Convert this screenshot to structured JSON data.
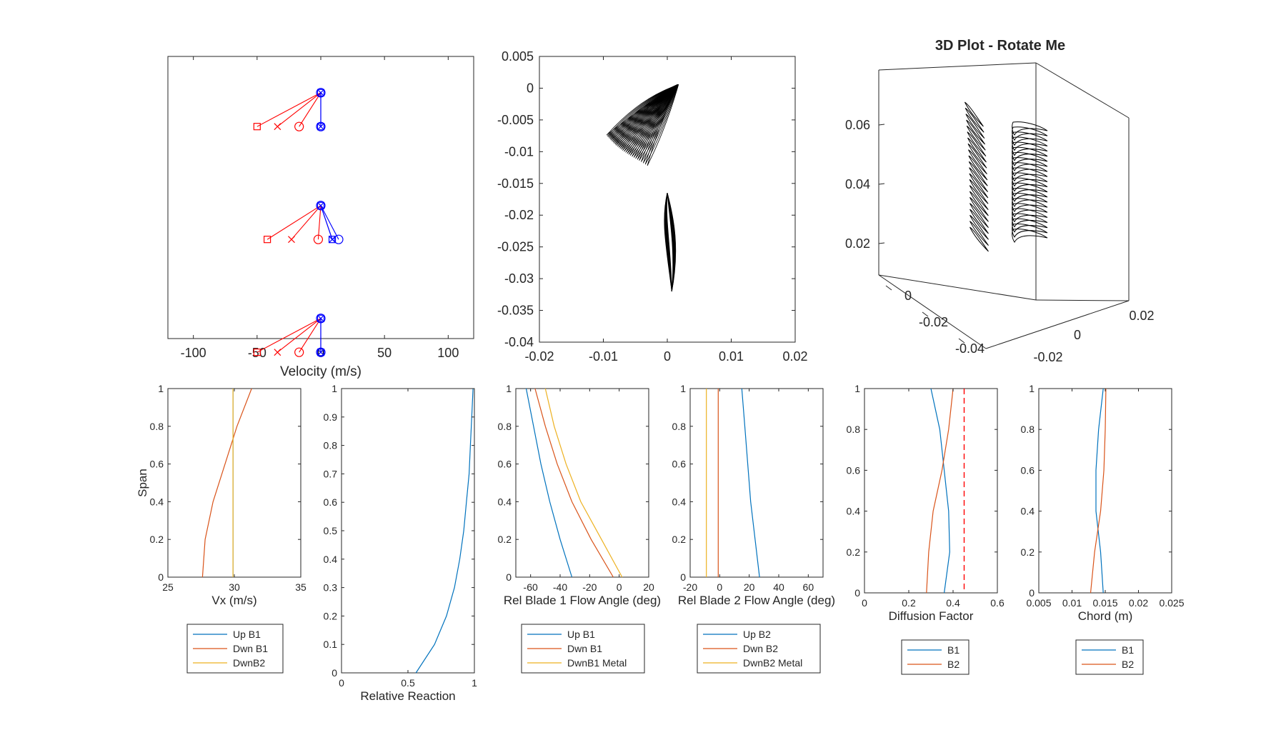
{
  "figure": {
    "width": 1800,
    "height": 1050
  },
  "chart_data": [
    {
      "id": "velocity_triangles",
      "type": "scatter",
      "xlabel": "Velocity (m/s)",
      "ylabel": "",
      "title": "",
      "xlim": [
        -120,
        120
      ],
      "ylim": [
        -0.45,
        3.05
      ],
      "xticks": [
        "-100",
        "-50",
        "0",
        "50",
        "100"
      ],
      "xtick_values": [
        -100,
        -50,
        0,
        50,
        100
      ],
      "colors": {
        "red": "#ff0000",
        "blue": "#0000ff"
      },
      "stations": [
        {
          "root_y": 2.6,
          "tip_y": 2.18,
          "red": {
            "square": -50,
            "cross": -34,
            "circle": -17
          },
          "blue": {
            "square": 0,
            "cross": 0,
            "circle": 0
          }
        },
        {
          "root_y": 1.2,
          "tip_y": 0.78,
          "red": {
            "square": -42,
            "cross": -23,
            "circle": -2
          },
          "blue": {
            "square": 9,
            "cross": 9,
            "circle": 14
          }
        },
        {
          "root_y": -0.2,
          "tip_y": -0.62,
          "red": {
            "square": -50,
            "cross": -34,
            "circle": -17
          },
          "blue": {
            "square": 0,
            "cross": 0,
            "circle": 0
          }
        }
      ]
    },
    {
      "id": "blade_sections",
      "type": "line",
      "xlabel": "",
      "ylabel": "",
      "title": "",
      "xlim": [
        -0.02,
        0.02
      ],
      "ylim": [
        -0.04,
        0.005
      ],
      "xticks": [
        "-0.02",
        "-0.01",
        "0",
        "0.01",
        "0.02"
      ],
      "xtick_values": [
        -0.02,
        -0.01,
        0,
        0.01,
        0.02
      ],
      "yticks": [
        "0.005",
        "0",
        "-0.005",
        "-0.01",
        "-0.015",
        "-0.02",
        "-0.025",
        "-0.03",
        "-0.035",
        "-0.04"
      ],
      "ytick_values": [
        0.005,
        0,
        -0.005,
        -0.01,
        -0.015,
        -0.02,
        -0.025,
        -0.03,
        -0.035,
        -0.04
      ],
      "blade1_sections": [
        {
          "le": [
            -0.0095,
            -0.0074
          ],
          "te": [
            0.0006,
            0.0001
          ],
          "mid": [
            -0.0045,
            -0.0022
          ]
        },
        {
          "le": [
            -0.0088,
            -0.0082
          ],
          "te": [
            0.0008,
            0.0002
          ],
          "mid": [
            -0.004,
            -0.0028
          ]
        },
        {
          "le": [
            -0.008,
            -0.009
          ],
          "te": [
            0.001,
            0.0003
          ],
          "mid": [
            -0.0035,
            -0.0035
          ]
        },
        {
          "le": [
            -0.007,
            -0.0098
          ],
          "te": [
            0.0012,
            0.0004
          ],
          "mid": [
            -0.003,
            -0.0042
          ]
        },
        {
          "le": [
            -0.0058,
            -0.0106
          ],
          "te": [
            0.0014,
            0.0005
          ],
          "mid": [
            -0.0024,
            -0.0049
          ]
        },
        {
          "le": [
            -0.0044,
            -0.0114
          ],
          "te": [
            0.0016,
            0.0006
          ],
          "mid": [
            -0.0018,
            -0.0055
          ]
        },
        {
          "le": [
            -0.0028,
            -0.0124
          ],
          "te": [
            0.0018,
            0.0006
          ],
          "mid": [
            -0.001,
            -0.0062
          ]
        }
      ],
      "blade2": {
        "top": [
          0.0,
          -0.0165
        ],
        "bottom": [
          0.0007,
          -0.032
        ]
      }
    },
    {
      "id": "plot_3d",
      "type": "line",
      "title": "3D Plot - Rotate Me",
      "xlabel": "",
      "ylabel": "",
      "zticks": [
        "0.06",
        "0.04",
        "0.02"
      ],
      "xticks_front": [
        "0",
        "-0.02",
        "-0.04"
      ],
      "yticks_right": [
        "-0.02",
        "0",
        "0.02"
      ],
      "blade_rows": 2,
      "sections_per_blade": 22
    },
    {
      "id": "vx_span",
      "type": "line",
      "xlabel": "Vx (m/s)",
      "ylabel": "Span",
      "title": "",
      "xlim": [
        25,
        35
      ],
      "ylim": [
        0,
        1
      ],
      "xticks": [
        "25",
        "30",
        "35"
      ],
      "xtick_values": [
        25,
        30,
        35
      ],
      "yticks": [
        "0",
        "0.2",
        "0.4",
        "0.6",
        "0.8",
        "1"
      ],
      "ytick_values": [
        0,
        0.2,
        0.4,
        0.6,
        0.8,
        1
      ],
      "series": [
        {
          "name": "Up B1",
          "color": "#0072bd",
          "x": [
            29.9,
            29.9,
            29.9,
            29.9,
            29.9,
            29.9
          ],
          "y": [
            0,
            0.2,
            0.4,
            0.6,
            0.8,
            1
          ]
        },
        {
          "name": "Dwn B1",
          "color": "#d95319",
          "x": [
            27.6,
            27.8,
            28.4,
            29.3,
            30.2,
            31.3
          ],
          "y": [
            0,
            0.2,
            0.4,
            0.6,
            0.8,
            1
          ]
        },
        {
          "name": "DwnB2",
          "color": "#edb120",
          "x": [
            29.9,
            29.9,
            29.9,
            29.9,
            29.9,
            29.9
          ],
          "y": [
            0,
            0.2,
            0.4,
            0.6,
            0.8,
            1
          ]
        }
      ]
    },
    {
      "id": "reaction_span",
      "type": "line",
      "xlabel": "Relative Reaction",
      "ylabel": "",
      "title": "",
      "xlim": [
        0,
        1
      ],
      "ylim": [
        0,
        1
      ],
      "xticks": [
        "0",
        "0.5",
        "1"
      ],
      "xtick_values": [
        0,
        0.5,
        1
      ],
      "yticks": [
        "0",
        "0.1",
        "0.2",
        "0.3",
        "0.4",
        "0.5",
        "0.6",
        "0.7",
        "0.8",
        "0.9",
        "1"
      ],
      "ytick_values": [
        0,
        0.1,
        0.2,
        0.3,
        0.4,
        0.5,
        0.6,
        0.7,
        0.8,
        0.9,
        1
      ],
      "series": [
        {
          "name": "",
          "color": "#0072bd",
          "x": [
            0.56,
            0.7,
            0.79,
            0.85,
            0.89,
            0.92,
            0.94,
            0.96,
            0.97,
            0.98,
            0.99
          ],
          "y": [
            0,
            0.1,
            0.2,
            0.3,
            0.4,
            0.5,
            0.6,
            0.7,
            0.8,
            0.9,
            1
          ]
        }
      ]
    },
    {
      "id": "blade1_angle",
      "type": "line",
      "xlabel": "Rel Blade 1 Flow Angle (deg)",
      "ylabel": "",
      "title": "",
      "xlim": [
        -70,
        20
      ],
      "ylim": [
        0,
        1
      ],
      "xticks": [
        "-60",
        "-40",
        "-20",
        "0",
        "20"
      ],
      "xtick_values": [
        -60,
        -40,
        -20,
        0,
        20
      ],
      "yticks": [
        "0",
        "0.2",
        "0.4",
        "0.6",
        "0.8",
        "1"
      ],
      "ytick_values": [
        0,
        0.2,
        0.4,
        0.6,
        0.8,
        1
      ],
      "series": [
        {
          "name": "Up B1",
          "color": "#0072bd",
          "x": [
            -32,
            -40,
            -47,
            -53,
            -58,
            -63
          ],
          "y": [
            0,
            0.2,
            0.4,
            0.6,
            0.8,
            1
          ]
        },
        {
          "name": "Dwn B1",
          "color": "#d95319",
          "x": [
            -4,
            -19,
            -32,
            -42,
            -50,
            -57
          ],
          "y": [
            0,
            0.2,
            0.4,
            0.6,
            0.8,
            1
          ]
        },
        {
          "name": "DwnB1 Metal",
          "color": "#edb120",
          "x": [
            2,
            -12,
            -26,
            -36,
            -44,
            -50
          ],
          "y": [
            0,
            0.2,
            0.4,
            0.6,
            0.8,
            1
          ]
        }
      ]
    },
    {
      "id": "blade2_angle",
      "type": "line",
      "xlabel": "Rel Blade 2 Flow Angle (deg)",
      "ylabel": "",
      "title": "",
      "xlim": [
        -20,
        70
      ],
      "ylim": [
        0,
        1
      ],
      "xticks": [
        "-20",
        "0",
        "20",
        "40",
        "60"
      ],
      "xtick_values": [
        -20,
        0,
        20,
        40,
        60
      ],
      "yticks": [
        "0",
        "0.2",
        "0.4",
        "0.6",
        "0.8",
        "1"
      ],
      "ytick_values": [
        0,
        0.2,
        0.4,
        0.6,
        0.8,
        1
      ],
      "series": [
        {
          "name": "Up B2",
          "color": "#0072bd",
          "x": [
            27,
            24,
            21,
            19,
            17,
            15
          ],
          "y": [
            0,
            0.2,
            0.4,
            0.6,
            0.8,
            1
          ]
        },
        {
          "name": "Dwn B2",
          "color": "#d95319",
          "x": [
            -1,
            -1,
            -1,
            -1,
            -1,
            -1
          ],
          "y": [
            0,
            0.2,
            0.4,
            0.6,
            0.8,
            1
          ]
        },
        {
          "name": "DwnB2 Metal",
          "color": "#edb120",
          "x": [
            -9,
            -9,
            -9,
            -9,
            -9,
            -9
          ],
          "y": [
            0,
            0.2,
            0.4,
            0.6,
            0.8,
            1
          ]
        }
      ]
    },
    {
      "id": "diffusion",
      "type": "line",
      "xlabel": "Diffusion Factor",
      "ylabel": "",
      "title": "",
      "xlim": [
        0,
        0.6
      ],
      "ylim": [
        0,
        1
      ],
      "xticks": [
        "0",
        "0.2",
        "0.4",
        "0.6"
      ],
      "xtick_values": [
        0,
        0.2,
        0.4,
        0.6
      ],
      "yticks": [
        "0",
        "0.2",
        "0.4",
        "0.6",
        "0.8",
        "1"
      ],
      "ytick_values": [
        0,
        0.2,
        0.4,
        0.6,
        0.8,
        1
      ],
      "limit_line": {
        "x": 0.45,
        "color": "#ff0000",
        "style": "dashed"
      },
      "series": [
        {
          "name": "B1",
          "color": "#0072bd",
          "x": [
            0.36,
            0.385,
            0.38,
            0.36,
            0.34,
            0.3
          ],
          "y": [
            0,
            0.2,
            0.4,
            0.6,
            0.8,
            1
          ]
        },
        {
          "name": "B2",
          "color": "#d95319",
          "x": [
            0.28,
            0.29,
            0.31,
            0.35,
            0.38,
            0.4
          ],
          "y": [
            0,
            0.2,
            0.4,
            0.6,
            0.8,
            1
          ]
        }
      ]
    },
    {
      "id": "chord",
      "type": "line",
      "xlabel": "Chord (m)",
      "ylabel": "",
      "title": "",
      "xlim": [
        0.005,
        0.025
      ],
      "ylim": [
        0,
        1
      ],
      "xticks": [
        "0.005",
        "0.01",
        "0.015",
        "0.02",
        "0.025"
      ],
      "xtick_values": [
        0.005,
        0.01,
        0.015,
        0.02,
        0.025
      ],
      "yticks": [
        "0",
        "0.2",
        "0.4",
        "0.6",
        "0.8",
        "1"
      ],
      "ytick_values": [
        0,
        0.2,
        0.4,
        0.6,
        0.8,
        1
      ],
      "series": [
        {
          "name": "B1",
          "color": "#0072bd",
          "x": [
            0.0147,
            0.0143,
            0.0136,
            0.0136,
            0.014,
            0.0147
          ],
          "y": [
            0,
            0.2,
            0.4,
            0.6,
            0.8,
            1
          ]
        },
        {
          "name": "B2",
          "color": "#d95319",
          "x": [
            0.0128,
            0.0134,
            0.0143,
            0.0148,
            0.015,
            0.0151
          ],
          "y": [
            0,
            0.2,
            0.4,
            0.6,
            0.8,
            1
          ]
        }
      ]
    }
  ]
}
